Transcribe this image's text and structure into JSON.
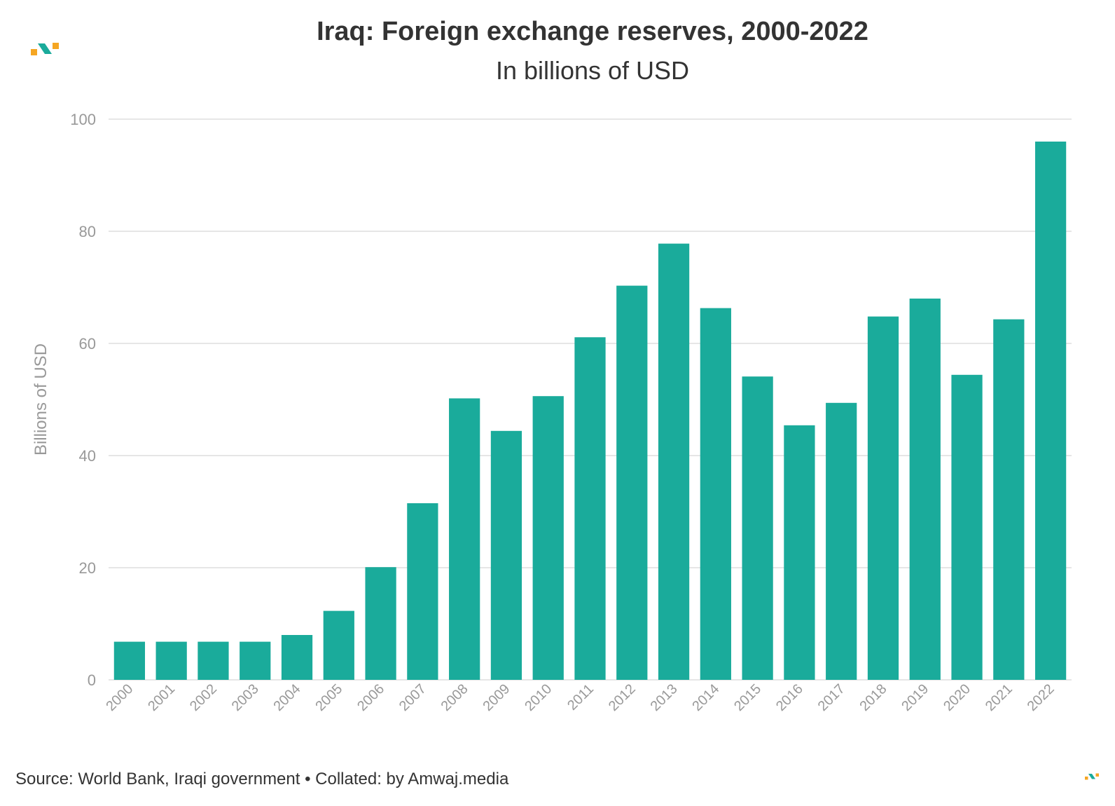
{
  "header": {
    "title": "Iraq: Foreign exchange reserves, 2000-2022",
    "subtitle": "In billions of USD"
  },
  "footer": {
    "source": "Source: World Bank, Iraqi government • Collated: by Amwaj.media"
  },
  "logo": {
    "name": "amwaj-logo-icon",
    "colors": [
      "#f5a623",
      "#1aab9b"
    ]
  },
  "colors": {
    "bar": "#1aab9b",
    "grid": "#e6e6e6",
    "axis_text": "#999999"
  },
  "chart_data": {
    "type": "bar",
    "title": "Iraq: Foreign exchange reserves, 2000-2022",
    "subtitle": "In billions of USD",
    "xlabel": "",
    "ylabel": "Billions of USD",
    "ylim": [
      0,
      100
    ],
    "yticks": [
      0,
      20,
      40,
      60,
      80,
      100
    ],
    "grid": true,
    "categories": [
      "2000",
      "2001",
      "2002",
      "2003",
      "2004",
      "2005",
      "2006",
      "2007",
      "2008",
      "2009",
      "2010",
      "2011",
      "2012",
      "2013",
      "2014",
      "2015",
      "2016",
      "2017",
      "2018",
      "2019",
      "2020",
      "2021",
      "2022"
    ],
    "values": [
      6.8,
      6.8,
      6.8,
      6.8,
      8.0,
      12.3,
      20.1,
      31.5,
      50.2,
      44.4,
      50.6,
      61.1,
      70.3,
      77.8,
      66.3,
      54.1,
      45.4,
      49.4,
      64.8,
      68.0,
      54.4,
      64.3,
      96.0
    ]
  }
}
